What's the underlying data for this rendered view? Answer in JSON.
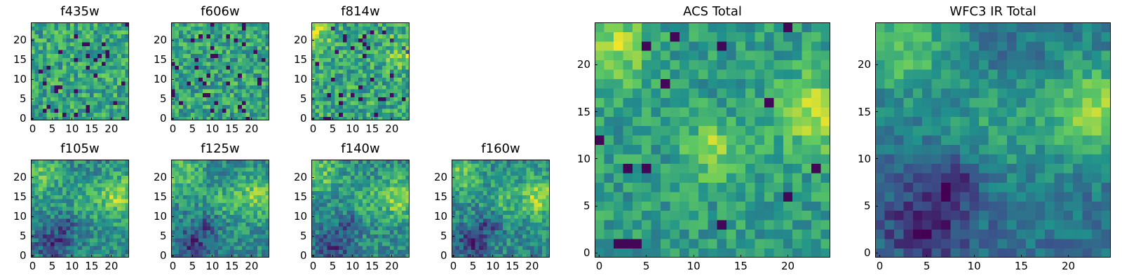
{
  "figure": {
    "colormap": "viridis",
    "colormap_stops": [
      "#440154",
      "#3b528b",
      "#21918c",
      "#5ec962",
      "#fde725"
    ]
  },
  "chart_data": [
    {
      "type": "heatmap",
      "title": "f435w",
      "grid_size": [
        25,
        25
      ],
      "xticks": [
        "0",
        "5",
        "10",
        "15",
        "20"
      ],
      "yticks": [
        "0",
        "5",
        "10",
        "15",
        "20"
      ],
      "xlim": [
        -0.5,
        24.5
      ],
      "ylim": [
        -0.5,
        24.5
      ],
      "pattern": "noisy_uniform",
      "seed": 11
    },
    {
      "type": "heatmap",
      "title": "f606w",
      "grid_size": [
        25,
        25
      ],
      "xticks": [
        "0",
        "5",
        "10",
        "15",
        "20"
      ],
      "yticks": [
        "0",
        "5",
        "10",
        "15",
        "20"
      ],
      "xlim": [
        -0.5,
        24.5
      ],
      "ylim": [
        -0.5,
        24.5
      ],
      "pattern": "noisy_uniform",
      "seed": 23
    },
    {
      "type": "heatmap",
      "title": "f814w",
      "grid_size": [
        25,
        25
      ],
      "xticks": [
        "0",
        "5",
        "10",
        "15",
        "20"
      ],
      "yticks": [
        "0",
        "5",
        "10",
        "15",
        "20"
      ],
      "xlim": [
        -0.5,
        24.5
      ],
      "ylim": [
        -0.5,
        24.5
      ],
      "pattern": "noisy_uniform",
      "seed": 37
    },
    {
      "type": "heatmap",
      "title": "f105w",
      "grid_size": [
        25,
        25
      ],
      "xticks": [
        "0",
        "5",
        "10",
        "15",
        "20"
      ],
      "yticks": [
        "0",
        "5",
        "10",
        "15",
        "20"
      ],
      "xlim": [
        -0.5,
        24.5
      ],
      "ylim": [
        -0.5,
        24.5
      ],
      "pattern": "smooth_ir",
      "seed": 41
    },
    {
      "type": "heatmap",
      "title": "f125w",
      "grid_size": [
        25,
        25
      ],
      "xticks": [
        "0",
        "5",
        "10",
        "15",
        "20"
      ],
      "yticks": [
        "0",
        "5",
        "10",
        "15",
        "20"
      ],
      "xlim": [
        -0.5,
        24.5
      ],
      "ylim": [
        -0.5,
        24.5
      ],
      "pattern": "smooth_ir",
      "seed": 53
    },
    {
      "type": "heatmap",
      "title": "f140w",
      "grid_size": [
        25,
        25
      ],
      "xticks": [
        "0",
        "5",
        "10",
        "15",
        "20"
      ],
      "yticks": [
        "0",
        "5",
        "10",
        "15",
        "20"
      ],
      "xlim": [
        -0.5,
        24.5
      ],
      "ylim": [
        -0.5,
        24.5
      ],
      "pattern": "smooth_ir",
      "seed": 67
    },
    {
      "type": "heatmap",
      "title": "f160w",
      "grid_size": [
        25,
        25
      ],
      "xticks": [
        "0",
        "5",
        "10",
        "15",
        "20"
      ],
      "yticks": [
        "0",
        "5",
        "10",
        "15",
        "20"
      ],
      "xlim": [
        -0.5,
        24.5
      ],
      "ylim": [
        -0.5,
        24.5
      ],
      "pattern": "smooth_ir",
      "seed": 79
    },
    {
      "type": "heatmap",
      "title": "ACS Total",
      "grid_size": [
        25,
        25
      ],
      "xticks": [
        "0",
        "5",
        "10",
        "15",
        "20"
      ],
      "yticks": [
        "0",
        "5",
        "10",
        "15",
        "20"
      ],
      "xlim": [
        -0.5,
        24.5
      ],
      "ylim": [
        -0.5,
        24.5
      ],
      "pattern": "acs_total",
      "seed": 97
    },
    {
      "type": "heatmap",
      "title": "WFC3 IR Total",
      "grid_size": [
        25,
        25
      ],
      "xticks": [
        "0",
        "5",
        "10",
        "15",
        "20"
      ],
      "yticks": [
        "0",
        "5",
        "10",
        "15",
        "20"
      ],
      "xlim": [
        -0.5,
        24.5
      ],
      "ylim": [
        -0.5,
        24.5
      ],
      "pattern": "ir_total",
      "seed": 101
    }
  ]
}
